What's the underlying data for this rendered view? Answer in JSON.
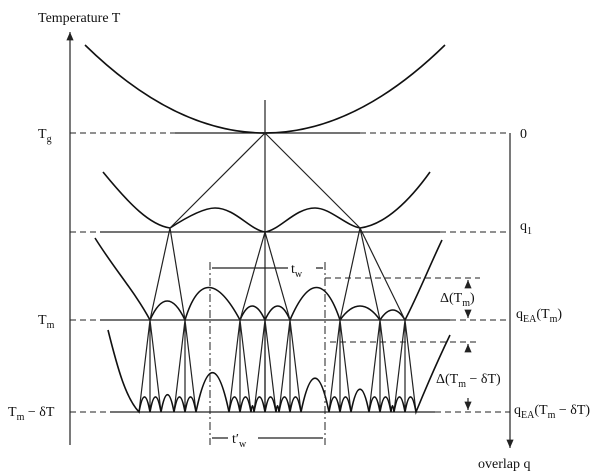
{
  "y_axis_label": "Temperature T",
  "x_axis_label": "overlap q",
  "temperature_levels": [
    {
      "main": "T",
      "sub": "g"
    },
    {
      "main": "T",
      "sub": "m"
    },
    {
      "main": "T",
      "sub": "m",
      "rest": " − δT"
    }
  ],
  "overlap_levels": [
    {
      "main": "0"
    },
    {
      "main": "q",
      "sub": "1"
    },
    {
      "main": "q",
      "sub": "EA",
      "rest": "(T",
      "sub2": "m",
      "rest2": ")"
    },
    {
      "main": "q",
      "sub": "EA",
      "rest": "(T",
      "sub2": "m",
      "rest2": " − δT)"
    }
  ],
  "waiting_times": [
    {
      "main": "t",
      "sub": "w"
    },
    {
      "main": "t′",
      "sub": "w"
    }
  ],
  "gaps": [
    {
      "main": "Δ(T",
      "sub": "m",
      "rest": ")"
    },
    {
      "main": "Δ(T",
      "sub": "m",
      "rest": " − δT)"
    }
  ]
}
